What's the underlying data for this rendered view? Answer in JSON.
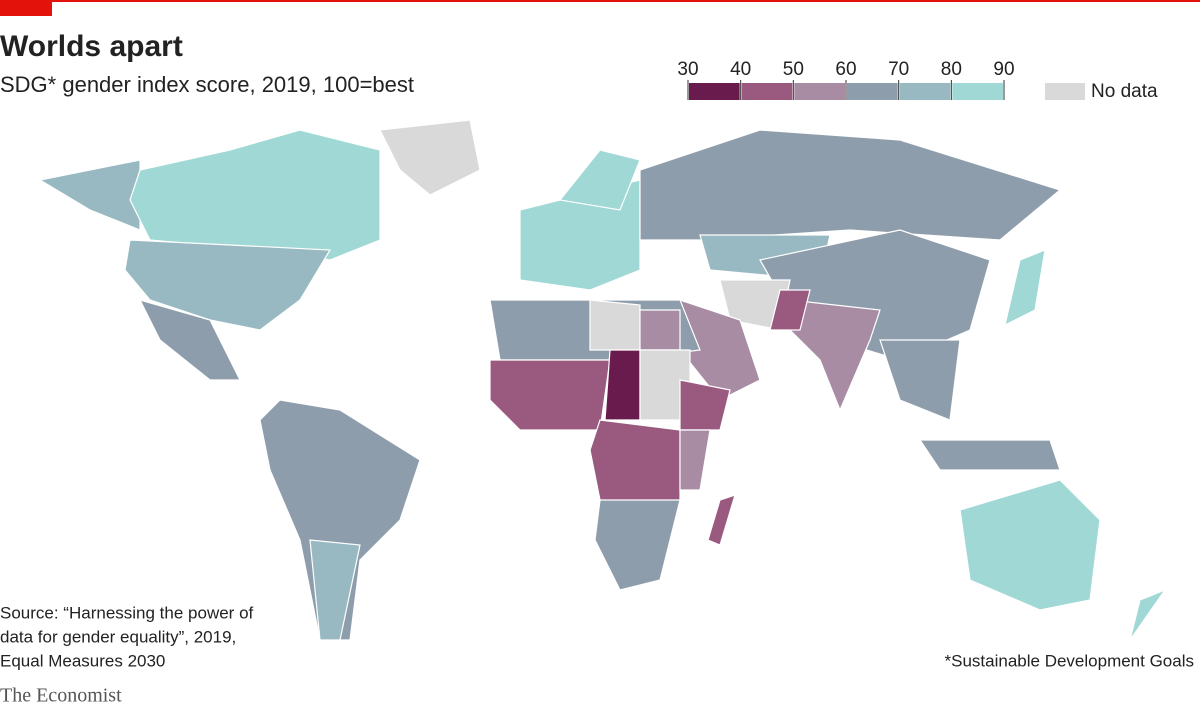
{
  "header": {
    "title": "Worlds apart",
    "subtitle": "SDG* gender index score, 2019, 100=best"
  },
  "legend": {
    "ticks": [
      30,
      40,
      50,
      60,
      70,
      80,
      90
    ],
    "colors": [
      "#6a1b4d",
      "#9a5a80",
      "#a78ca3",
      "#8e9dab",
      "#98b9c2",
      "#9fd8d5"
    ],
    "no_data_label": "No data",
    "no_data_color": "#d9d9d9"
  },
  "source": [
    "Source: “Harnessing the power of",
    "data for gender equality”, 2019,",
    "Equal Measures 2030"
  ],
  "footnote": "*Sustainable Development Goals",
  "brand": "The Economist"
}
